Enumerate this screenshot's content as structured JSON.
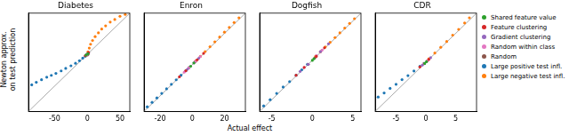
{
  "chart_data": [
    {
      "type": "scatter",
      "title": "Diabetes",
      "ylabel": "Newton approx.\non test prediction",
      "xlim": [
        -90,
        65
      ],
      "ylim": [
        -90,
        65
      ],
      "xticks": [
        -50,
        0,
        50
      ],
      "tick_labels": "x",
      "grid": false,
      "marker": "circle",
      "series": [
        {
          "name": "Shared feature value",
          "color": "#2ca02c",
          "x": [
            -2,
            1
          ],
          "values": [
            -1,
            1
          ]
        },
        {
          "name": "Feature clustering",
          "color": "#d62728",
          "x": [
            -3,
            2
          ],
          "values": [
            -2,
            3
          ]
        },
        {
          "name": "Gradient clustering",
          "color": "#9467bd",
          "x": [
            -1,
            2
          ],
          "values": [
            0,
            2
          ]
        },
        {
          "name": "Random within class",
          "color": "#e377c2",
          "x": [
            -2,
            1
          ],
          "values": [
            -2,
            2
          ]
        },
        {
          "name": "Random",
          "color": "#8c564b",
          "x": [
            0,
            1
          ],
          "values": [
            -1,
            0
          ]
        },
        {
          "name": "Large positive test infl.",
          "color": "#1f77b4",
          "x": [
            -85,
            -78,
            -70,
            -62,
            -55,
            -48,
            -40,
            -33,
            -25,
            -18,
            -12,
            -7,
            -3
          ],
          "values": [
            -48,
            -44,
            -40,
            -36,
            -33,
            -30,
            -26,
            -22,
            -18,
            -14,
            -10,
            -6,
            -3
          ]
        },
        {
          "name": "Large negative test infl.",
          "color": "#ff7f0e",
          "x": [
            1,
            3,
            5,
            8,
            12,
            17,
            22,
            28,
            35,
            42,
            50,
            58
          ],
          "values": [
            4,
            10,
            16,
            22,
            28,
            34,
            40,
            45,
            51,
            55,
            60,
            63
          ]
        }
      ]
    },
    {
      "type": "scatter",
      "title": "Enron",
      "xlim": [
        -30,
        33
      ],
      "ylim": [
        -30,
        33
      ],
      "xticks": [
        -20,
        0,
        20
      ],
      "tick_labels": "x",
      "grid": false,
      "marker": "circle",
      "series": [
        {
          "name": "Shared feature value",
          "color": "#2ca02c",
          "x": [
            -1,
            1
          ],
          "values": [
            -1,
            1.1
          ]
        },
        {
          "name": "Feature clustering",
          "color": "#d62728",
          "x": [
            -8,
            -4,
            3,
            7
          ],
          "values": [
            -7.8,
            -3.9,
            3.1,
            7.2
          ]
        },
        {
          "name": "Gradient clustering",
          "color": "#9467bd",
          "x": [
            -3,
            1,
            4
          ],
          "values": [
            -2.9,
            1.1,
            4.1
          ]
        },
        {
          "name": "Random within class",
          "color": "#e377c2",
          "x": [
            -5,
            -2,
            2,
            5
          ],
          "values": [
            -4.8,
            -1.9,
            2.1,
            5.2
          ]
        },
        {
          "name": "Random",
          "color": "#8c564b",
          "x": [
            -2,
            2
          ],
          "values": [
            -1.9,
            2.1
          ]
        },
        {
          "name": "Large positive test infl.",
          "color": "#1f77b4",
          "x": [
            -28,
            -25,
            -22,
            -19,
            -16,
            -13,
            -10,
            -7,
            -4,
            -2
          ],
          "values": [
            -27,
            -24.2,
            -21.3,
            -18.4,
            -15.5,
            -12.6,
            -9.7,
            -6.8,
            -3.9,
            -1.9
          ]
        },
        {
          "name": "Large negative test infl.",
          "color": "#ff7f0e",
          "x": [
            2,
            5,
            8,
            11,
            14,
            17,
            20,
            23,
            26,
            29
          ],
          "values": [
            2.2,
            5.3,
            8.4,
            11.5,
            14.6,
            17.7,
            20.8,
            23.9,
            27,
            30
          ]
        }
      ]
    },
    {
      "type": "scatter",
      "title": "Dogfish",
      "xlim": [
        -6.5,
        6
      ],
      "ylim": [
        -6.5,
        6
      ],
      "xticks": [
        -5,
        0,
        5
      ],
      "tick_labels": "x",
      "grid": false,
      "marker": "circle",
      "series": [
        {
          "name": "Shared feature value",
          "color": "#2ca02c",
          "x": [
            0,
            0.2
          ],
          "values": [
            0,
            0.2
          ]
        },
        {
          "name": "Feature clustering",
          "color": "#d62728",
          "x": [
            -2,
            -1,
            0.5,
            1.5
          ],
          "values": [
            -1.9,
            -0.9,
            0.5,
            1.6
          ]
        },
        {
          "name": "Gradient clustering",
          "color": "#9467bd",
          "x": [
            -1.5,
            -0.5,
            1,
            2
          ],
          "values": [
            -1.4,
            -0.5,
            1.1,
            2.1
          ]
        },
        {
          "name": "Random within class",
          "color": "#e377c2",
          "x": [
            -1,
            0.5,
            1.2
          ],
          "values": [
            -0.9,
            0.6,
            1.3
          ]
        },
        {
          "name": "Random",
          "color": "#8c564b",
          "x": [
            -0.5,
            0.3
          ],
          "values": [
            -0.5,
            0.3
          ]
        },
        {
          "name": "Large positive test infl.",
          "color": "#1f77b4",
          "x": [
            -6,
            -5.2,
            -4.4,
            -3.6,
            -2.8,
            -2,
            -1.3,
            -0.6
          ],
          "values": [
            -5.8,
            -5,
            -4.2,
            -3.4,
            -2.7,
            -1.9,
            -1.2,
            -0.5
          ]
        },
        {
          "name": "Large negative test infl.",
          "color": "#ff7f0e",
          "x": [
            0.4,
            1,
            1.6,
            2.2,
            2.8,
            3.4,
            4,
            4.6,
            5.2
          ],
          "values": [
            0.5,
            1.1,
            1.7,
            2.3,
            2.9,
            3.5,
            4.1,
            4.7,
            5.3
          ]
        }
      ]
    },
    {
      "type": "scatter",
      "title": "CDR",
      "legend": "right",
      "xlim": [
        -8.5,
        8.5
      ],
      "ylim": [
        -8.5,
        8.5
      ],
      "xticks": [
        -5,
        0,
        5
      ],
      "tick_labels": "x",
      "grid": false,
      "marker": "circle",
      "series": [
        {
          "name": "Shared feature value",
          "color": "#2ca02c",
          "x": [
            -0.2,
            0.1
          ],
          "values": [
            -0.2,
            0.1
          ]
        },
        {
          "name": "Feature clustering",
          "color": "#d62728",
          "x": [
            -1,
            0.5
          ],
          "values": [
            -0.8,
            0.5
          ]
        },
        {
          "name": "Gradient clustering",
          "color": "#9467bd",
          "x": [
            -0.6,
            0.8
          ],
          "values": [
            -0.5,
            0.8
          ]
        },
        {
          "name": "Random within class",
          "color": "#e377c2",
          "x": [
            -0.4,
            0.3
          ],
          "values": [
            -0.3,
            0.3
          ]
        },
        {
          "name": "Random",
          "color": "#8c564b",
          "x": [
            -0.3,
            0.2
          ],
          "values": [
            -0.2,
            0.2
          ]
        },
        {
          "name": "Large positive test infl.",
          "color": "#1f77b4",
          "x": [
            -8,
            -7,
            -6,
            -5,
            -4,
            -3,
            -2,
            -1,
            -0.3
          ],
          "values": [
            -6,
            -5.3,
            -4.5,
            -3.8,
            -3,
            -2.3,
            -1.5,
            -0.7,
            -0.2
          ]
        },
        {
          "name": "Large negative test infl.",
          "color": "#ff7f0e",
          "x": [
            0.5,
            1.5,
            2.5,
            3.5,
            4.5,
            5.5,
            6.5,
            7.3
          ],
          "values": [
            0.6,
            1.6,
            2.6,
            3.6,
            4.7,
            5.7,
            6.8,
            7.7
          ]
        }
      ]
    }
  ],
  "xlabel": "Actual effect"
}
